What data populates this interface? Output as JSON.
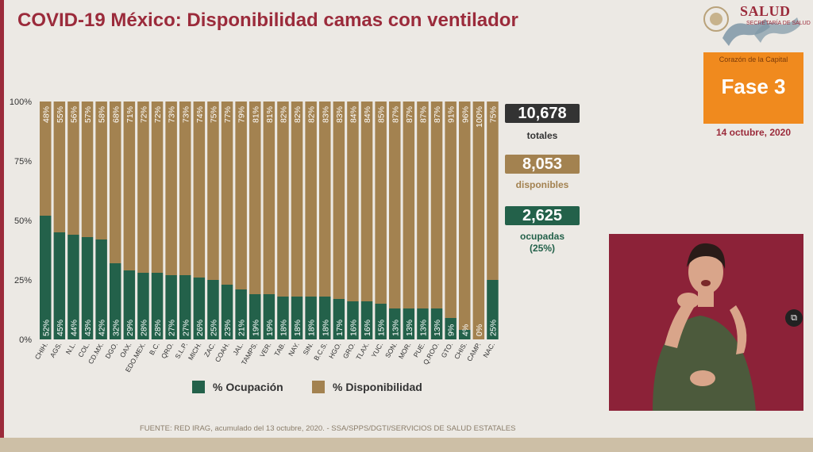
{
  "header": {
    "title": "COVID-19 México: Disponibilidad camas con ventilador",
    "logo_text": "SALUD",
    "logo_sub": "SECRETARÍA DE SALUD"
  },
  "phase": {
    "subtitle": "Corazón de la Capital",
    "label": "Fase 3",
    "date": "14 octubre, 2020"
  },
  "stats": {
    "total_value": "10,678",
    "total_label": "totales",
    "available_value": "8,053",
    "available_label": "disponibles",
    "occupied_value": "2,625",
    "occupied_label": "ocupadas",
    "occupied_pct": "(25%)"
  },
  "legend": {
    "occupation": "% Ocupación",
    "availability": "% Disponibilidad"
  },
  "source": "FUENTE: RED IRAG, acumulado del 13 octubre, 2020. -   SSA/SPPS/DGTI/SERVICIOS DE SALUD ESTATALES",
  "colors": {
    "occupation": "#23614a",
    "availability": "#a38250",
    "brand": "#9b2b3b",
    "phase": "#f08a1e"
  },
  "chart_data": {
    "type": "bar",
    "stacked": true,
    "categories": [
      "CHIH.",
      "AGS.",
      "N.L.",
      "COL.",
      "CD.MX.",
      "DGO.",
      "OAX.",
      "EDO.MEX.",
      "B.C.",
      "QRO.",
      "S.L.P.",
      "MICH.",
      "ZAC.",
      "COAH.",
      "JAL.",
      "TAMPS.",
      "VER.",
      "TAB.",
      "NAY.",
      "SIN.",
      "B.C.S.",
      "HGO.",
      "GRO.",
      "TLAX.",
      "YUC.",
      "SON.",
      "MOR.",
      "PUE.",
      "Q.ROO.",
      "GTO.",
      "CHIS.",
      "CAMP.",
      "NAC."
    ],
    "series": [
      {
        "name": "% Ocupación",
        "values": [
          52,
          45,
          44,
          43,
          42,
          32,
          29,
          28,
          28,
          27,
          27,
          26,
          25,
          23,
          21,
          19,
          19,
          18,
          18,
          18,
          18,
          17,
          16,
          16,
          15,
          13,
          13,
          13,
          13,
          9,
          4,
          0,
          25
        ]
      },
      {
        "name": "% Disponibilidad",
        "values": [
          48,
          55,
          56,
          57,
          58,
          68,
          71,
          72,
          72,
          73,
          73,
          74,
          75,
          77,
          79,
          81,
          81,
          82,
          82,
          82,
          83,
          83,
          84,
          84,
          85,
          87,
          87,
          87,
          87,
          91,
          96,
          100,
          75
        ]
      }
    ],
    "value_labels": {
      "occupation": [
        "52%",
        "45%",
        "44%",
        "43%",
        "42%",
        "32%",
        "29%",
        "28%",
        "28%",
        "27%",
        "27%",
        "26%",
        "25%",
        "23%",
        "21%",
        "19%",
        "19%",
        "18%",
        "18%",
        "18%",
        "18%",
        "17%",
        "16%",
        "16%",
        "15%",
        "13%",
        "13%",
        "13%",
        "13%",
        "9%",
        "4%",
        "0%",
        "25%"
      ],
      "availability": [
        "48%",
        "55%",
        "56%",
        "57%",
        "58%",
        "68%",
        "71%",
        "72%",
        "72%",
        "73%",
        "73%",
        "74%",
        "75%",
        "77%",
        "79%",
        "81%",
        "81%",
        "82%",
        "82%",
        "82%",
        "83%",
        "83%",
        "84%",
        "84%",
        "85%",
        "87%",
        "87%",
        "87%",
        "87%",
        "91%",
        "96%",
        "100%",
        "75%"
      ]
    },
    "y_ticks": [
      "0%",
      "25%",
      "50%",
      "75%",
      "100%"
    ],
    "ylim": [
      0,
      100
    ],
    "grid": false,
    "legend_position": "bottom"
  }
}
